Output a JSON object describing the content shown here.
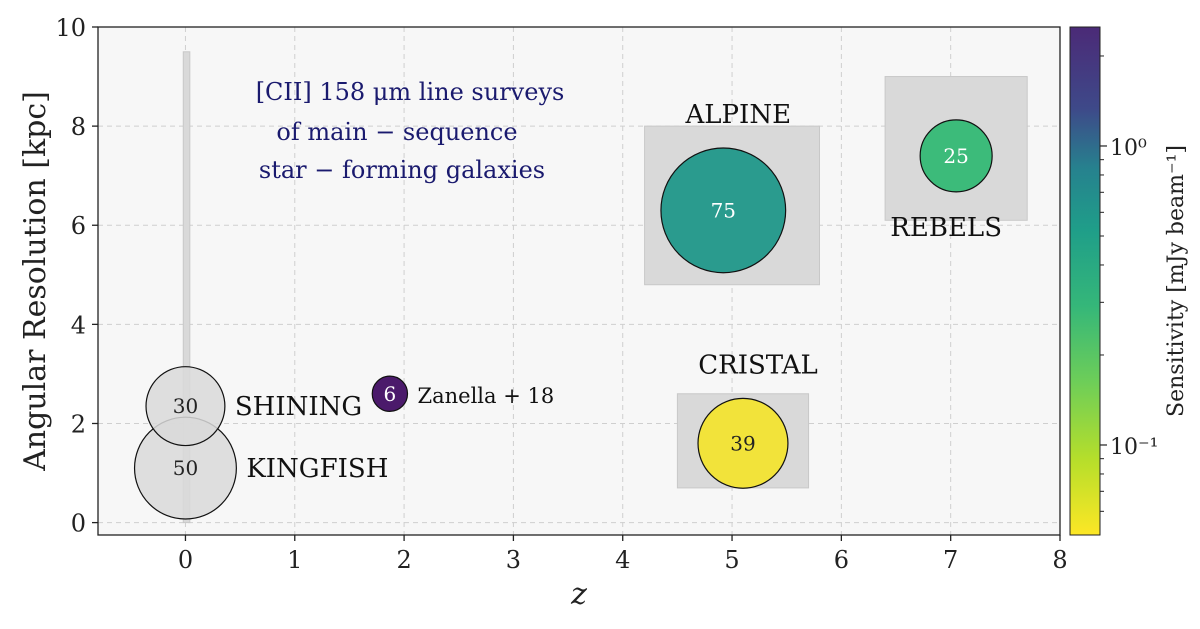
{
  "chart_data": {
    "type": "scatter",
    "title": "",
    "xlabel": "z",
    "ylabel": "Angular Resolution [kpc]",
    "xlim": [
      -0.8,
      8
    ],
    "ylim": [
      -0.25,
      10
    ],
    "xticks": [
      0,
      1,
      2,
      3,
      4,
      5,
      6,
      7,
      8
    ],
    "yticks": [
      0,
      2,
      4,
      6,
      8,
      10
    ],
    "grid": true,
    "annotation": [
      "[CII] 158 μm line surveys",
      "of main − sequence",
      "star − forming galaxies"
    ],
    "colorbar": {
      "label": "Sensitivity [mJy beam⁻¹]",
      "scale": "log",
      "range": [
        0.05,
        2.5
      ],
      "colormap": "viridis",
      "ticks": [
        {
          "value": 1,
          "label": "10⁰"
        },
        {
          "value": 0.1,
          "label": "10⁻¹"
        }
      ]
    },
    "bands": [
      {
        "name": "local-z",
        "x": [
          -0.02,
          0.04
        ],
        "y": [
          0,
          9.5
        ]
      },
      {
        "name": "ALPINE",
        "x": [
          4.2,
          5.8
        ],
        "y": [
          4.8,
          8.0
        ]
      },
      {
        "name": "REBELS",
        "x": [
          6.4,
          7.7
        ],
        "y": [
          6.1,
          9.0
        ]
      },
      {
        "name": "CRISTAL",
        "x": [
          4.5,
          5.7
        ],
        "y": [
          0.7,
          2.6
        ]
      }
    ],
    "points": [
      {
        "name": "KINGFISH",
        "label": "KINGFISH",
        "x": 0.0,
        "y": 1.1,
        "count": 50,
        "count_text": "50",
        "color": "#d9d9d9",
        "label_side": "right"
      },
      {
        "name": "SHINING",
        "label": "SHINING",
        "x": 0.0,
        "y": 2.35,
        "count": 30,
        "count_text": "30",
        "color": "#d9d9d9",
        "label_side": "right"
      },
      {
        "name": "Zanella18",
        "label": "Zanella + 18",
        "x": 1.87,
        "y": 2.6,
        "count": 6,
        "count_text": "6",
        "color": "#4b1a6b",
        "label_side": "right"
      },
      {
        "name": "ALPINE",
        "label": "ALPINE",
        "x": 4.92,
        "y": 6.3,
        "count": 75,
        "count_text": "75",
        "color": "#2a9b8e",
        "label_side": "above"
      },
      {
        "name": "REBELS",
        "label": "REBELS",
        "x": 7.05,
        "y": 7.4,
        "count": 25,
        "count_text": "25",
        "color": "#3cbb7a",
        "label_side": "below"
      },
      {
        "name": "CRISTAL",
        "label": "CRISTAL",
        "x": 5.1,
        "y": 1.6,
        "count": 39,
        "count_text": "39",
        "color": "#f2e33a",
        "label_side": "above"
      }
    ]
  }
}
